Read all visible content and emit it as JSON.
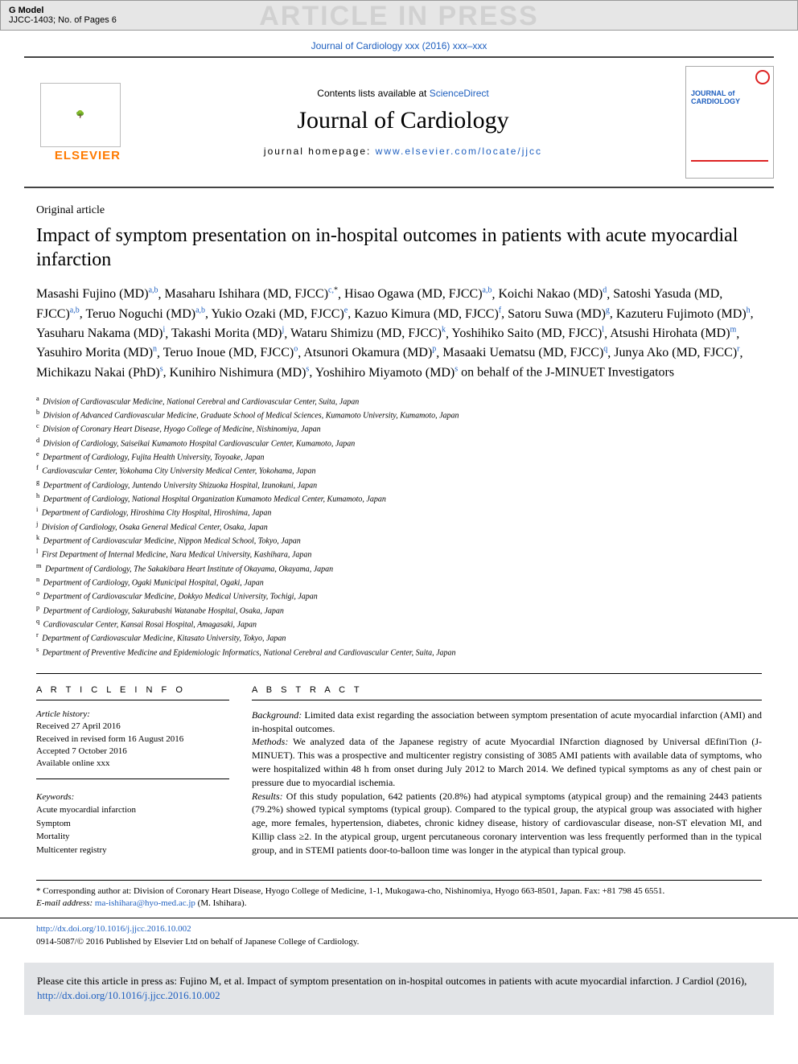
{
  "gmodel": {
    "label": "G Model",
    "code": "JJCC-1403; No. of Pages 6",
    "watermark": "ARTICLE IN PRESS"
  },
  "topLink": "Journal of Cardiology xxx (2016) xxx–xxx",
  "masthead": {
    "contentsPrefix": "Contents lists available at ",
    "scienceDirect": "ScienceDirect",
    "journal": "Journal of Cardiology",
    "homepagePrefix": "journal homepage: ",
    "homepageUrl": "www.elsevier.com/locate/jjcc",
    "elsevier": "ELSEVIER",
    "coverTitle": "JOURNAL of CARDIOLOGY"
  },
  "articleType": "Original article",
  "title": "Impact of symptom presentation on in-hospital outcomes in patients with acute myocardial infarction",
  "authors": [
    {
      "name": "Masashi Fujino (MD)",
      "aff": "a,b"
    },
    {
      "name": "Masaharu Ishihara (MD, FJCC)",
      "aff": "c,*"
    },
    {
      "name": "Hisao Ogawa (MD, FJCC)",
      "aff": "a,b"
    },
    {
      "name": "Koichi Nakao (MD)",
      "aff": "d"
    },
    {
      "name": "Satoshi Yasuda (MD, FJCC)",
      "aff": "a,b"
    },
    {
      "name": "Teruo Noguchi (MD)",
      "aff": "a,b"
    },
    {
      "name": "Yukio Ozaki (MD, FJCC)",
      "aff": "e"
    },
    {
      "name": "Kazuo Kimura (MD, FJCC)",
      "aff": "f"
    },
    {
      "name": "Satoru Suwa (MD)",
      "aff": "g"
    },
    {
      "name": "Kazuteru Fujimoto (MD)",
      "aff": "h"
    },
    {
      "name": "Yasuharu Nakama (MD)",
      "aff": "i"
    },
    {
      "name": "Takashi Morita (MD)",
      "aff": "j"
    },
    {
      "name": "Wataru Shimizu (MD, FJCC)",
      "aff": "k"
    },
    {
      "name": "Yoshihiko Saito (MD, FJCC)",
      "aff": "l"
    },
    {
      "name": "Atsushi Hirohata (MD)",
      "aff": "m"
    },
    {
      "name": "Yasuhiro Morita (MD)",
      "aff": "n"
    },
    {
      "name": "Teruo Inoue (MD, FJCC)",
      "aff": "o"
    },
    {
      "name": "Atsunori Okamura (MD)",
      "aff": "p"
    },
    {
      "name": "Masaaki Uematsu (MD, FJCC)",
      "aff": "q"
    },
    {
      "name": "Junya Ako (MD, FJCC)",
      "aff": "r"
    },
    {
      "name": "Michikazu Nakai (PhD)",
      "aff": "s"
    },
    {
      "name": "Kunihiro Nishimura (MD)",
      "aff": "s"
    },
    {
      "name": "Yoshihiro Miyamoto (MD)",
      "aff": "s"
    }
  ],
  "authorsTail": " on behalf of the J-MINUET Investigators",
  "affiliations": [
    {
      "k": "a",
      "t": "Division of Cardiovascular Medicine, National Cerebral and Cardiovascular Center, Suita, Japan"
    },
    {
      "k": "b",
      "t": "Division of Advanced Cardiovascular Medicine, Graduate School of Medical Sciences, Kumamoto University, Kumamoto, Japan"
    },
    {
      "k": "c",
      "t": "Division of Coronary Heart Disease, Hyogo College of Medicine, Nishinomiya, Japan"
    },
    {
      "k": "d",
      "t": "Division of Cardiology, Saiseikai Kumamoto Hospital Cardiovascular Center, Kumamoto, Japan"
    },
    {
      "k": "e",
      "t": "Department of Cardiology, Fujita Health University, Toyoake, Japan"
    },
    {
      "k": "f",
      "t": "Cardiovascular Center, Yokohama City University Medical Center, Yokohama, Japan"
    },
    {
      "k": "g",
      "t": "Department of Cardiology, Juntendo University Shizuoka Hospital, Izunokuni, Japan"
    },
    {
      "k": "h",
      "t": "Department of Cardiology, National Hospital Organization Kumamoto Medical Center, Kumamoto, Japan"
    },
    {
      "k": "i",
      "t": "Department of Cardiology, Hiroshima City Hospital, Hiroshima, Japan"
    },
    {
      "k": "j",
      "t": "Division of Cardiology, Osaka General Medical Center, Osaka, Japan"
    },
    {
      "k": "k",
      "t": "Department of Cardiovascular Medicine, Nippon Medical School, Tokyo, Japan"
    },
    {
      "k": "l",
      "t": "First Department of Internal Medicine, Nara Medical University, Kashihara, Japan"
    },
    {
      "k": "m",
      "t": "Department of Cardiology, The Sakakibara Heart Institute of Okayama, Okayama, Japan"
    },
    {
      "k": "n",
      "t": "Department of Cardiology, Ogaki Municipal Hospital, Ogaki, Japan"
    },
    {
      "k": "o",
      "t": "Department of Cardiovascular Medicine, Dokkyo Medical University, Tochigi, Japan"
    },
    {
      "k": "p",
      "t": "Department of Cardiology, Sakurabashi Watanabe Hospital, Osaka, Japan"
    },
    {
      "k": "q",
      "t": "Cardiovascular Center, Kansai Rosai Hospital, Amagasaki, Japan"
    },
    {
      "k": "r",
      "t": "Department of Cardiovascular Medicine, Kitasato University, Tokyo, Japan"
    },
    {
      "k": "s",
      "t": "Department of Preventive Medicine and Epidemiologic Informatics, National Cerebral and Cardiovascular Center, Suita, Japan"
    }
  ],
  "info": {
    "head": "A R T I C L E   I N F O",
    "histLabel": "Article history:",
    "received": "Received 27 April 2016",
    "revised": "Received in revised form 16 August 2016",
    "accepted": "Accepted 7 October 2016",
    "online": "Available online xxx",
    "kwLabel": "Keywords:",
    "keywords": [
      "Acute myocardial infarction",
      "Symptom",
      "Mortality",
      "Multicenter registry"
    ]
  },
  "abstract": {
    "head": "A B S T R A C T",
    "bgLabel": "Background:",
    "bg": " Limited data exist regarding the association between symptom presentation of acute myocardial infarction (AMI) and in-hospital outcomes.",
    "mLabel": "Methods:",
    "m": " We analyzed data of the Japanese registry of acute Myocardial INfarction diagnosed by Universal dEfiniTion (J-MINUET). This was a prospective and multicenter registry consisting of 3085 AMI patients with available data of symptoms, who were hospitalized within 48 h from onset during July 2012 to March 2014. We defined typical symptoms as any of chest pain or pressure due to myocardial ischemia.",
    "rLabel": "Results:",
    "r": " Of this study population, 642 patients (20.8%) had atypical symptoms (atypical group) and the remaining 2443 patients (79.2%) showed typical symptoms (typical group). Compared to the typical group, the atypical group was associated with higher age, more females, hypertension, diabetes, chronic kidney disease, history of cardiovascular disease, non-ST elevation MI, and Killip class ≥2. In the atypical group, urgent percutaneous coronary intervention was less frequently performed than in the typical group, and in STEMI patients door-to-balloon time was longer in the atypical than typical group."
  },
  "corr": {
    "star": "*",
    "text": " Corresponding author at: Division of Coronary Heart Disease, Hyogo College of Medicine, 1-1, Mukogawa-cho, Nishinomiya, Hyogo 663-8501, Japan. Fax: +81 798 45 6551.",
    "emailLabel": "E-mail address: ",
    "email": "ma-ishihara@hyo-med.ac.jp",
    "emailTail": " (M. Ishihara)."
  },
  "doi": {
    "url": "http://dx.doi.org/10.1016/j.jjcc.2016.10.002",
    "copyright": "0914-5087/© 2016 Published by Elsevier Ltd on behalf of Japanese College of Cardiology."
  },
  "citation": {
    "prefix": "Please cite this article in press as: Fujino M, et al. Impact of symptom presentation on in-hospital outcomes in patients with acute myocardial infarction. J Cardiol (2016), ",
    "url": "http://dx.doi.org/10.1016/j.jjcc.2016.10.002"
  }
}
